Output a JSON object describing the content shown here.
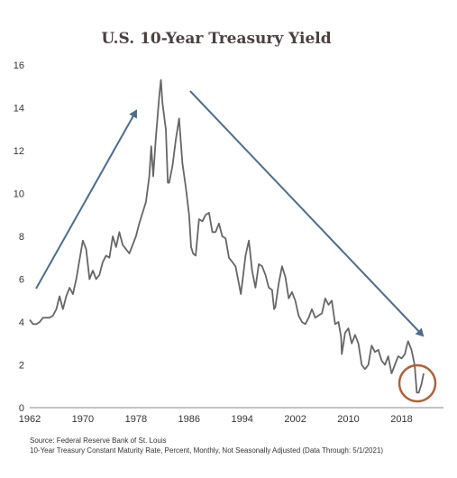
{
  "chart_data": {
    "type": "line",
    "title": "U.S. 10-Year Treasury Yield",
    "xlabel": "",
    "ylabel": "",
    "xlim": [
      1962,
      2021.33
    ],
    "ylim": [
      0,
      16
    ],
    "x_ticks": [
      1962,
      1970,
      1978,
      1986,
      1994,
      2002,
      2010,
      2018
    ],
    "x_tick_labels": [
      "1962",
      "1970",
      "1978",
      "1986",
      "1994",
      "2002",
      "2010",
      "2018"
    ],
    "y_ticks": [
      0,
      2,
      4,
      6,
      8,
      10,
      12,
      14,
      16
    ],
    "y_tick_labels": [
      "0",
      "2",
      "4",
      "6",
      "8",
      "10",
      "12",
      "14",
      "16"
    ],
    "grid": false,
    "series": [
      {
        "color": "#666666",
        "x": [
          1962,
          1962.5,
          1963,
          1963.5,
          1964,
          1964.5,
          1965,
          1965.5,
          1966,
          1966.5,
          1967,
          1967.5,
          1968,
          1968.5,
          1969,
          1969.5,
          1970,
          1970.5,
          1971,
          1971.5,
          1972,
          1972.5,
          1973,
          1973.5,
          1974,
          1974.5,
          1975,
          1975.5,
          1976,
          1976.5,
          1977,
          1977.5,
          1978,
          1978.5,
          1979,
          1979.5,
          1980,
          1980.3,
          1980.6,
          1981,
          1981.5,
          1981.75,
          1982,
          1982.5,
          1982.8,
          1983,
          1983.5,
          1984,
          1984.5,
          1985,
          1985.5,
          1986,
          1986.3,
          1986.6,
          1987,
          1987.5,
          1988,
          1988.5,
          1989,
          1989.5,
          1990,
          1990.5,
          1991,
          1991.5,
          1992,
          1992.5,
          1993,
          1993.5,
          1993.8,
          1994,
          1994.5,
          1995,
          1995.5,
          1996,
          1996.5,
          1997,
          1997.5,
          1998,
          1998.5,
          1998.8,
          1999,
          1999.5,
          2000,
          2000.5,
          2001,
          2001.5,
          2002,
          2002.5,
          2003,
          2003.5,
          2004,
          2004.5,
          2005,
          2005.5,
          2006,
          2006.5,
          2007,
          2007.5,
          2008,
          2008.5,
          2008.9,
          2009,
          2009.5,
          2010,
          2010.5,
          2011,
          2011.5,
          2012,
          2012.5,
          2013,
          2013.5,
          2014,
          2014.5,
          2015,
          2015.5,
          2016,
          2016.5,
          2017,
          2017.5,
          2018,
          2018.5,
          2018.8,
          2019,
          2019.5,
          2019.9,
          2020,
          2020.3,
          2020.6,
          2021,
          2021.33
        ],
        "y": [
          4.1,
          3.9,
          3.9,
          4.0,
          4.2,
          4.2,
          4.2,
          4.3,
          4.6,
          5.2,
          4.6,
          5.2,
          5.6,
          5.3,
          6.0,
          6.9,
          7.8,
          7.4,
          6.0,
          6.4,
          6.0,
          6.2,
          6.8,
          7.1,
          7.0,
          8.0,
          7.5,
          8.2,
          7.6,
          7.4,
          7.2,
          7.6,
          8.0,
          8.6,
          9.1,
          9.6,
          10.8,
          12.2,
          10.8,
          12.6,
          14.5,
          15.3,
          14.2,
          13.0,
          10.5,
          10.5,
          11.3,
          12.5,
          13.5,
          11.4,
          10.3,
          9.0,
          7.5,
          7.2,
          7.1,
          8.8,
          8.7,
          9.0,
          9.1,
          8.2,
          8.2,
          8.6,
          8.0,
          7.9,
          7.0,
          6.8,
          6.6,
          5.8,
          5.3,
          5.8,
          7.1,
          7.8,
          6.4,
          5.6,
          6.7,
          6.6,
          6.2,
          5.6,
          5.5,
          4.6,
          4.7,
          5.8,
          6.6,
          6.1,
          5.1,
          5.4,
          5.0,
          4.3,
          4.0,
          3.9,
          4.2,
          4.6,
          4.2,
          4.3,
          4.4,
          5.1,
          4.8,
          5.0,
          3.9,
          4.0,
          3.3,
          2.5,
          3.5,
          3.7,
          3.0,
          3.4,
          3.0,
          2.0,
          1.8,
          2.0,
          2.9,
          2.6,
          2.7,
          2.2,
          2.0,
          2.4,
          1.6,
          2.0,
          2.4,
          2.3,
          2.5,
          2.9,
          3.1,
          2.7,
          2.1,
          1.9,
          0.7,
          0.7,
          1.1,
          1.6
        ]
      }
    ],
    "annotations": [
      {
        "type": "arrow",
        "direction": "up",
        "color": "#4e6d8a"
      },
      {
        "type": "arrow",
        "direction": "down",
        "color": "#4e6d8a"
      },
      {
        "type": "circle",
        "color": "#b0603a"
      }
    ]
  },
  "source": {
    "line1": "Source: Federal Reserve Bank of St. Louis",
    "line2": "10-Year Treasury Constant Maturity Rate, Percent, Monthly, Not Seasonally Adjusted (Data Through: 5/1/2021)"
  }
}
